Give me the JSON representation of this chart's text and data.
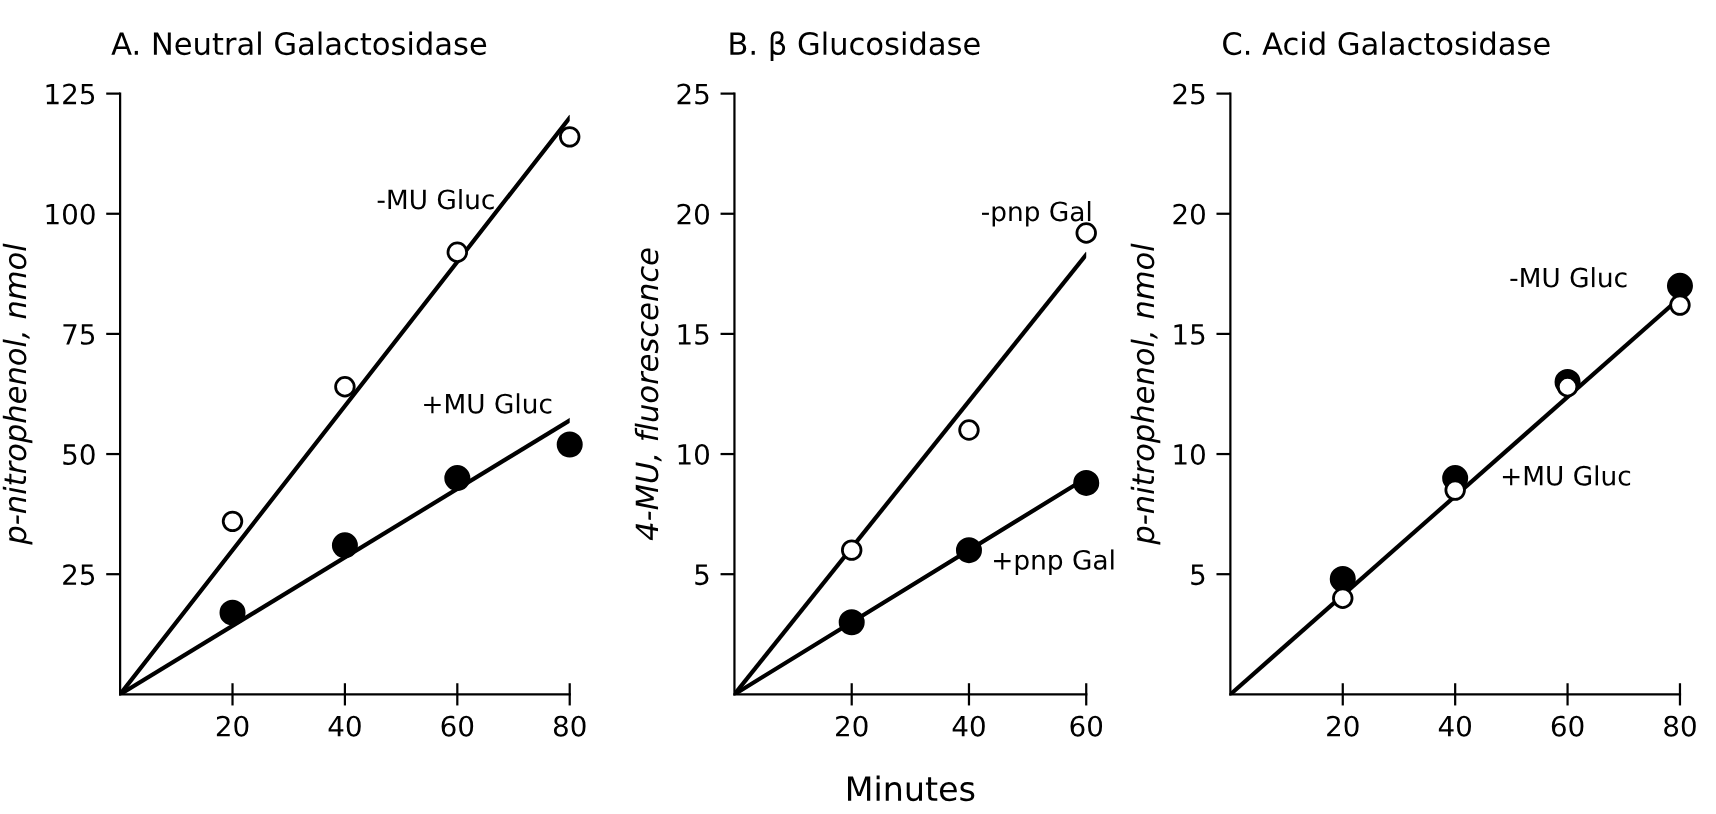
{
  "chart_data": [
    {
      "type": "scatter",
      "title": "A. Neutral Galactosidase",
      "ylabel": "p-nitrophenol, nmol",
      "xlim": [
        0,
        80
      ],
      "ylim": [
        0,
        125
      ],
      "xticks": [
        20,
        40,
        60,
        80
      ],
      "yticks": [
        25,
        50,
        75,
        100,
        125
      ],
      "grid": false,
      "series": [
        {
          "type": "line",
          "marker": "none",
          "color": "#000000",
          "x": [
            0,
            80
          ],
          "values": [
            0,
            120
          ]
        },
        {
          "type": "line",
          "marker": "none",
          "color": "#000000",
          "x": [
            0,
            80
          ],
          "values": [
            0,
            57
          ]
        },
        {
          "marker": "circle",
          "color": "#ffffff",
          "x": [
            20,
            40,
            60,
            80
          ],
          "values": [
            36,
            64,
            92,
            116
          ]
        },
        {
          "marker": "circle",
          "color": "#000000",
          "x": [
            20,
            40,
            60,
            80
          ],
          "values": [
            17,
            31,
            45,
            52
          ]
        }
      ],
      "annotations": [
        "-MU Gluc",
        "+MU Gluc"
      ]
    },
    {
      "type": "scatter",
      "title": "B. β Glucosidase",
      "ylabel": "4-MU, fluorescence",
      "xlabel": "Minutes",
      "xlim": [
        0,
        60
      ],
      "ylim": [
        0,
        25
      ],
      "xticks": [
        20,
        40,
        60
      ],
      "yticks": [
        5,
        10,
        15,
        20,
        25
      ],
      "grid": false,
      "series": [
        {
          "type": "line",
          "marker": "none",
          "color": "#000000",
          "x": [
            0,
            60
          ],
          "values": [
            0,
            18.3
          ]
        },
        {
          "type": "line",
          "marker": "none",
          "color": "#000000",
          "x": [
            0,
            60
          ],
          "values": [
            0,
            9
          ]
        },
        {
          "marker": "circle",
          "color": "#ffffff",
          "x": [
            20,
            40,
            60
          ],
          "values": [
            6,
            11,
            19.2
          ]
        },
        {
          "marker": "circle",
          "color": "#000000",
          "x": [
            20,
            40,
            60
          ],
          "values": [
            3,
            6,
            8.8
          ]
        }
      ],
      "annotations": [
        "-pnp Gal",
        "+pnp Gal"
      ]
    },
    {
      "type": "scatter",
      "title": "C. Acid Galactosidase",
      "ylabel": "p-nitrophenol, nmol",
      "xlim": [
        0,
        80
      ],
      "ylim": [
        0,
        25
      ],
      "xticks": [
        20,
        40,
        60,
        80
      ],
      "yticks": [
        5,
        10,
        15,
        20,
        25
      ],
      "grid": false,
      "series": [
        {
          "type": "line",
          "marker": "none",
          "color": "#000000",
          "x": [
            0,
            80
          ],
          "values": [
            0,
            16.5
          ]
        },
        {
          "marker": "circle",
          "color": "#000000",
          "x": [
            20,
            40,
            60,
            80
          ],
          "values": [
            4.8,
            9,
            13,
            17
          ]
        },
        {
          "marker": "circle",
          "color": "#ffffff",
          "x": [
            20,
            40,
            60,
            80
          ],
          "values": [
            4,
            8.5,
            12.8,
            16.2
          ]
        }
      ],
      "annotations": [
        "-MU Gluc",
        "+MU Gluc"
      ]
    }
  ]
}
